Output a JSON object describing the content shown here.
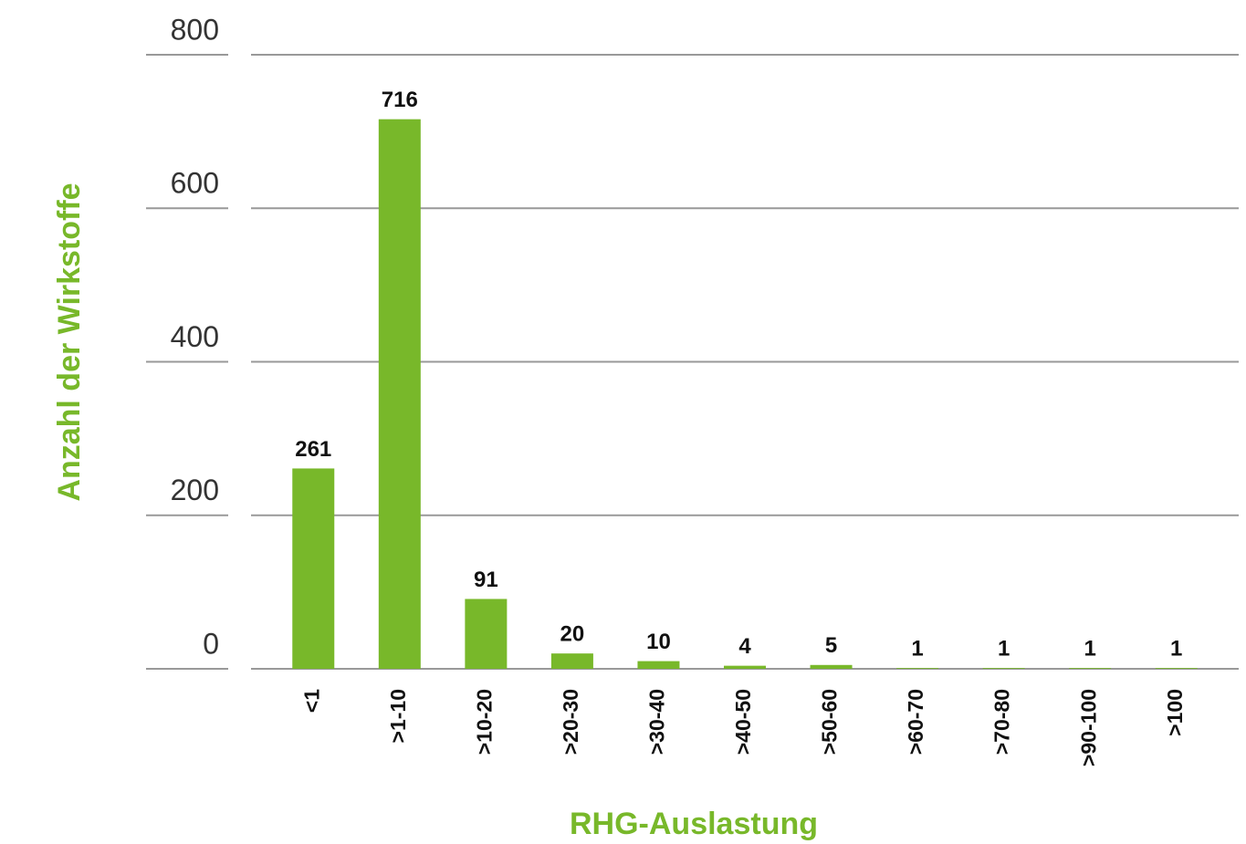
{
  "chart_data": {
    "type": "bar",
    "xlabel": "RHG-Auslastung",
    "ylabel": "Anzahl der Wirkstoffe",
    "categories": [
      "<1",
      ">1-10",
      ">10-20",
      ">20-30",
      ">30-40",
      ">40-50",
      ">50-60",
      ">60-70",
      ">70-80",
      ">90-100",
      ">100"
    ],
    "values": [
      261,
      716,
      91,
      20,
      10,
      4,
      5,
      1,
      1,
      1,
      1
    ],
    "color": "#78b82a",
    "ylim": [
      0,
      800
    ],
    "yticks": [
      0,
      200,
      400,
      600,
      800
    ],
    "grid": true
  }
}
